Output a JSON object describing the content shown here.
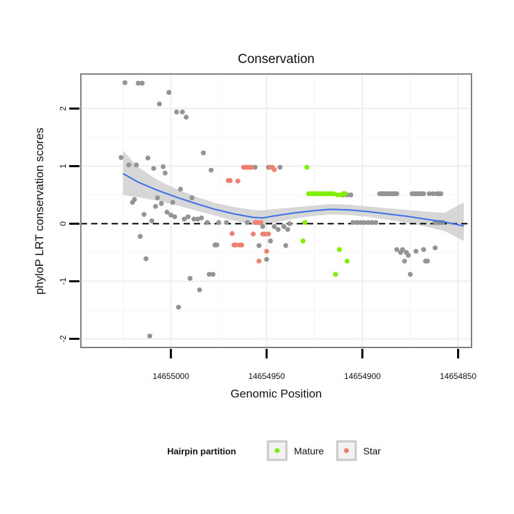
{
  "chart_data": {
    "type": "scatter",
    "title": "Conservation",
    "xlabel": "Genomic Position",
    "ylabel": "phyloP LRT conservation scores",
    "x_reversed": true,
    "xlim": [
      14655047,
      14654843
    ],
    "ylim": [
      -2.15,
      2.6
    ],
    "x_ticks": [
      14655000,
      14654950,
      14654900,
      14654850
    ],
    "x_tick_labels": [
      "14655000",
      "14654950",
      "14654900",
      "14654850"
    ],
    "y_ticks": [
      -2,
      -1,
      0,
      1,
      2
    ],
    "y_tick_labels": [
      "-2",
      "-1",
      "0",
      "1",
      "2"
    ],
    "grid": true,
    "reference_line": {
      "y": 0,
      "style": "dashed"
    },
    "legend": {
      "title": "Hairpin partition",
      "position": "bottom",
      "entries": [
        {
          "name": "Mature",
          "color": "#7ff000"
        },
        {
          "name": "Star",
          "color": "#f08070"
        }
      ]
    },
    "colors": {
      "other": "#949494",
      "Mature": "#7ff000",
      "Star": "#f08070",
      "smooth": "#3a6ee8",
      "band": "#c9c9c9"
    },
    "series": [
      {
        "group": "other",
        "points": [
          [
            14655026,
            1.15
          ],
          [
            14655024,
            2.45
          ],
          [
            14655022,
            1.02
          ],
          [
            14655020,
            0.37
          ],
          [
            14655019,
            0.42
          ],
          [
            14655018,
            1.02
          ],
          [
            14655017,
            2.44
          ],
          [
            14655016,
            -0.22
          ],
          [
            14655015,
            2.44
          ],
          [
            14655014,
            0.16
          ],
          [
            14655013,
            -0.61
          ],
          [
            14655012,
            1.14
          ],
          [
            14655011,
            -1.95
          ],
          [
            14655010,
            0.05
          ],
          [
            14655009,
            0.96
          ],
          [
            14655008,
            0.3
          ],
          [
            14655007,
            0.45
          ],
          [
            14655006,
            2.08
          ],
          [
            14655005,
            0.35
          ],
          [
            14655004,
            0.99
          ],
          [
            14655003,
            0.88
          ],
          [
            14655002,
            0.2
          ],
          [
            14655001,
            2.28
          ],
          [
            14655000,
            0.15
          ],
          [
            14654999,
            0.37
          ],
          [
            14654998,
            0.12
          ],
          [
            14654997,
            1.94
          ],
          [
            14654996,
            -1.45
          ],
          [
            14654995,
            0.6
          ],
          [
            14654994,
            1.94
          ],
          [
            14654993,
            0.08
          ],
          [
            14654992,
            1.85
          ],
          [
            14654991,
            0.12
          ],
          [
            14654990,
            -0.95
          ],
          [
            14654989,
            0.45
          ],
          [
            14654988,
            0.08
          ],
          [
            14654986,
            0.08
          ],
          [
            14654985,
            -1.15
          ],
          [
            14654984,
            0.1
          ],
          [
            14654983,
            1.23
          ],
          [
            14654981,
            0.02
          ],
          [
            14654980,
            -0.88
          ],
          [
            14654979,
            0.93
          ],
          [
            14654978,
            -0.88
          ],
          [
            14654977,
            -0.37
          ],
          [
            14654976,
            -0.37
          ],
          [
            14654975,
            0.02
          ],
          [
            14654971,
            0.02
          ],
          [
            14654960,
            0.02
          ],
          [
            14654958,
            0.98
          ],
          [
            14654956,
            0.98
          ],
          [
            14654954,
            -0.38
          ],
          [
            14654952,
            -0.05
          ],
          [
            14654950,
            -0.62
          ],
          [
            14654949,
            0.98
          ],
          [
            14654948,
            -0.3
          ],
          [
            14654946,
            -0.05
          ],
          [
            14654944,
            -0.1
          ],
          [
            14654943,
            0.98
          ],
          [
            14654941,
            -0.05
          ],
          [
            14654940,
            -0.38
          ],
          [
            14654939,
            -0.1
          ],
          [
            14654938,
            0.0
          ],
          [
            14654910,
            0.5
          ],
          [
            14654908,
            0.5
          ],
          [
            14654906,
            0.5
          ],
          [
            14654905,
            0.02
          ],
          [
            14654903,
            0.02
          ],
          [
            14654901,
            0.02
          ],
          [
            14654899,
            0.02
          ],
          [
            14654897,
            0.02
          ],
          [
            14654895,
            0.02
          ],
          [
            14654893,
            0.02
          ],
          [
            14654891,
            0.52
          ],
          [
            14654890,
            0.52
          ],
          [
            14654889,
            0.52
          ],
          [
            14654888,
            0.52
          ],
          [
            14654887,
            0.52
          ],
          [
            14654886,
            0.52
          ],
          [
            14654885,
            0.52
          ],
          [
            14654884,
            0.52
          ],
          [
            14654883,
            0.52
          ],
          [
            14654882,
            0.52
          ],
          [
            14654882,
            -0.45
          ],
          [
            14654880,
            -0.5
          ],
          [
            14654879,
            -0.45
          ],
          [
            14654878,
            -0.65
          ],
          [
            14654877,
            -0.5
          ],
          [
            14654876,
            -0.55
          ],
          [
            14654874,
            0.52
          ],
          [
            14654873,
            0.52
          ],
          [
            14654872,
            0.52
          ],
          [
            14654871,
            0.52
          ],
          [
            14654870,
            0.52
          ],
          [
            14654869,
            0.52
          ],
          [
            14654868,
            0.52
          ],
          [
            14654875,
            -0.88
          ],
          [
            14654872,
            -0.48
          ],
          [
            14654868,
            -0.45
          ],
          [
            14654867,
            -0.65
          ],
          [
            14654866,
            -0.65
          ],
          [
            14654865,
            0.52
          ],
          [
            14654863,
            0.52
          ],
          [
            14654862,
            -0.42
          ],
          [
            14654861,
            0.52
          ],
          [
            14654860,
            0.52
          ],
          [
            14654859,
            0.52
          ],
          [
            14654862,
            0.02
          ],
          [
            14654861,
            0.02
          ],
          [
            14654860,
            0.02
          ],
          [
            14654859,
            0.02
          ],
          [
            14654858,
            0.02
          ]
        ]
      },
      {
        "group": "Star",
        "points": [
          [
            14654970,
            0.75
          ],
          [
            14654969,
            0.75
          ],
          [
            14654968,
            -0.17
          ],
          [
            14654967,
            -0.37
          ],
          [
            14654966,
            -0.37
          ],
          [
            14654965,
            0.74
          ],
          [
            14654964,
            -0.37
          ],
          [
            14654963,
            -0.37
          ],
          [
            14654962,
            0.98
          ],
          [
            14654961,
            0.98
          ],
          [
            14654960,
            0.98
          ],
          [
            14654959,
            0.98
          ],
          [
            14654958,
            0.98
          ],
          [
            14654957,
            -0.18
          ],
          [
            14654956,
            0.02
          ],
          [
            14654955,
            0.02
          ],
          [
            14654954,
            -0.65
          ],
          [
            14654953,
            0.02
          ],
          [
            14654952,
            -0.18
          ],
          [
            14654951,
            -0.18
          ],
          [
            14654950,
            -0.48
          ],
          [
            14654949,
            -0.18
          ],
          [
            14654948,
            0.98
          ],
          [
            14654947,
            0.98
          ],
          [
            14654946,
            0.94
          ]
        ]
      },
      {
        "group": "Mature",
        "points": [
          [
            14654930,
            0.02
          ],
          [
            14654929,
            0.98
          ],
          [
            14654928,
            0.52
          ],
          [
            14654927,
            0.52
          ],
          [
            14654926,
            0.52
          ],
          [
            14654925,
            0.52
          ],
          [
            14654924,
            0.52
          ],
          [
            14654923,
            0.52
          ],
          [
            14654922,
            0.52
          ],
          [
            14654921,
            0.52
          ],
          [
            14654920,
            0.52
          ],
          [
            14654919,
            0.52
          ],
          [
            14654918,
            0.52
          ],
          [
            14654917,
            0.52
          ],
          [
            14654916,
            0.52
          ],
          [
            14654915,
            0.52
          ],
          [
            14654914,
            -0.88
          ],
          [
            14654913,
            0.5
          ],
          [
            14654912,
            -0.45
          ],
          [
            14654911,
            0.5
          ],
          [
            14654910,
            0.52
          ],
          [
            14654909,
            0.52
          ],
          [
            14654908,
            -0.65
          ],
          [
            14654931,
            -0.3
          ]
        ]
      }
    ],
    "smooth": {
      "x": [
        14655025,
        14655017,
        14655007,
        14654997,
        14654987,
        14654977,
        14654967,
        14654957,
        14654952,
        14654947,
        14654937,
        14654927,
        14654917,
        14654907,
        14654897,
        14654887,
        14654877,
        14654867,
        14654857,
        14654847
      ],
      "y": [
        0.87,
        0.72,
        0.58,
        0.46,
        0.35,
        0.25,
        0.17,
        0.11,
        0.1,
        0.13,
        0.18,
        0.22,
        0.25,
        0.24,
        0.21,
        0.17,
        0.13,
        0.08,
        0.03,
        -0.04
      ],
      "lo": [
        0.5,
        0.46,
        0.4,
        0.32,
        0.23,
        0.14,
        0.05,
        -0.02,
        -0.03,
        0.01,
        0.08,
        0.13,
        0.16,
        0.15,
        0.12,
        0.07,
        0.02,
        -0.05,
        -0.13,
        -0.3
      ],
      "hi": [
        1.27,
        0.98,
        0.76,
        0.6,
        0.47,
        0.36,
        0.29,
        0.24,
        0.23,
        0.25,
        0.28,
        0.31,
        0.34,
        0.33,
        0.3,
        0.27,
        0.24,
        0.21,
        0.19,
        0.37
      ]
    }
  }
}
